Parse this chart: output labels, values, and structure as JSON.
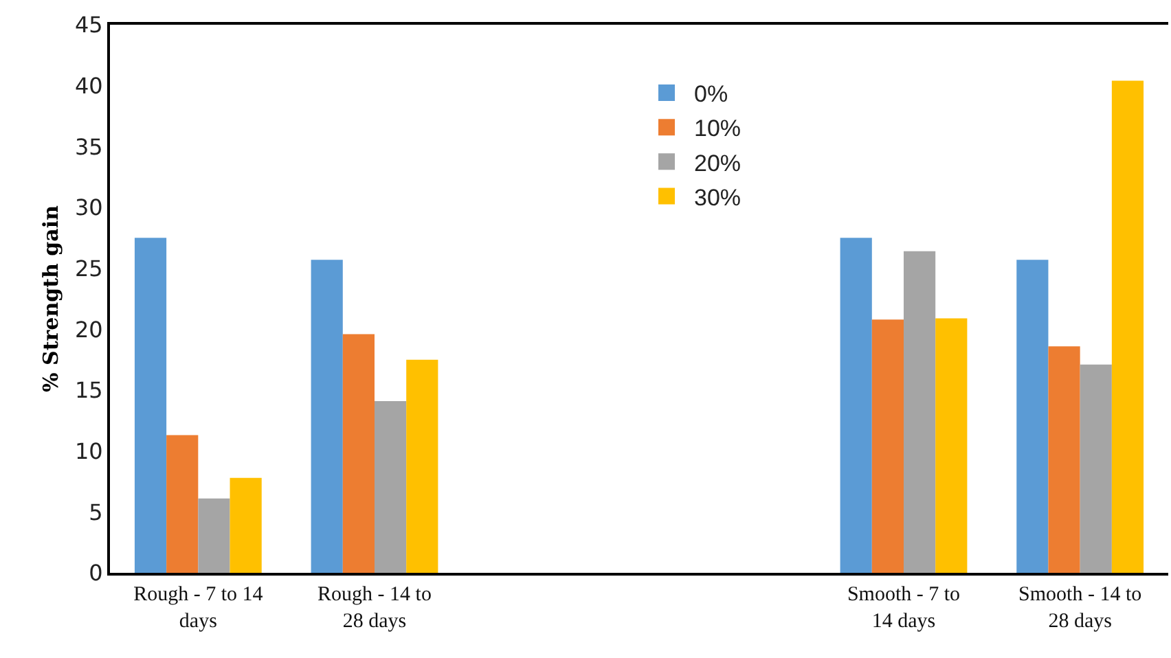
{
  "chart_data": {
    "type": "bar",
    "ylabel": "% Strength gain",
    "categories": [
      "Rough - 7 to 14 days",
      "Rough - 14 to 28 days",
      null,
      null,
      "Smooth - 7 to 14 days",
      "Smooth - 14 to 28 days"
    ],
    "series": [
      {
        "name": "0%",
        "color": "#5b9bd5",
        "values": [
          27.5,
          25.7,
          null,
          null,
          27.5,
          25.7
        ]
      },
      {
        "name": "10%",
        "color": "#ed7d31",
        "values": [
          11.3,
          19.6,
          null,
          null,
          20.8,
          18.6
        ]
      },
      {
        "name": "20%",
        "color": "#a5a5a5",
        "values": [
          6.1,
          14.1,
          null,
          null,
          26.4,
          17.1
        ]
      },
      {
        "name": "30%",
        "color": "#ffc000",
        "values": [
          7.8,
          17.5,
          null,
          null,
          20.9,
          40.4
        ]
      }
    ],
    "ylim": [
      0,
      45
    ],
    "yticks": [
      0,
      5,
      10,
      15,
      20,
      25,
      30,
      35,
      40,
      45
    ],
    "grid": false,
    "legend": "top"
  }
}
